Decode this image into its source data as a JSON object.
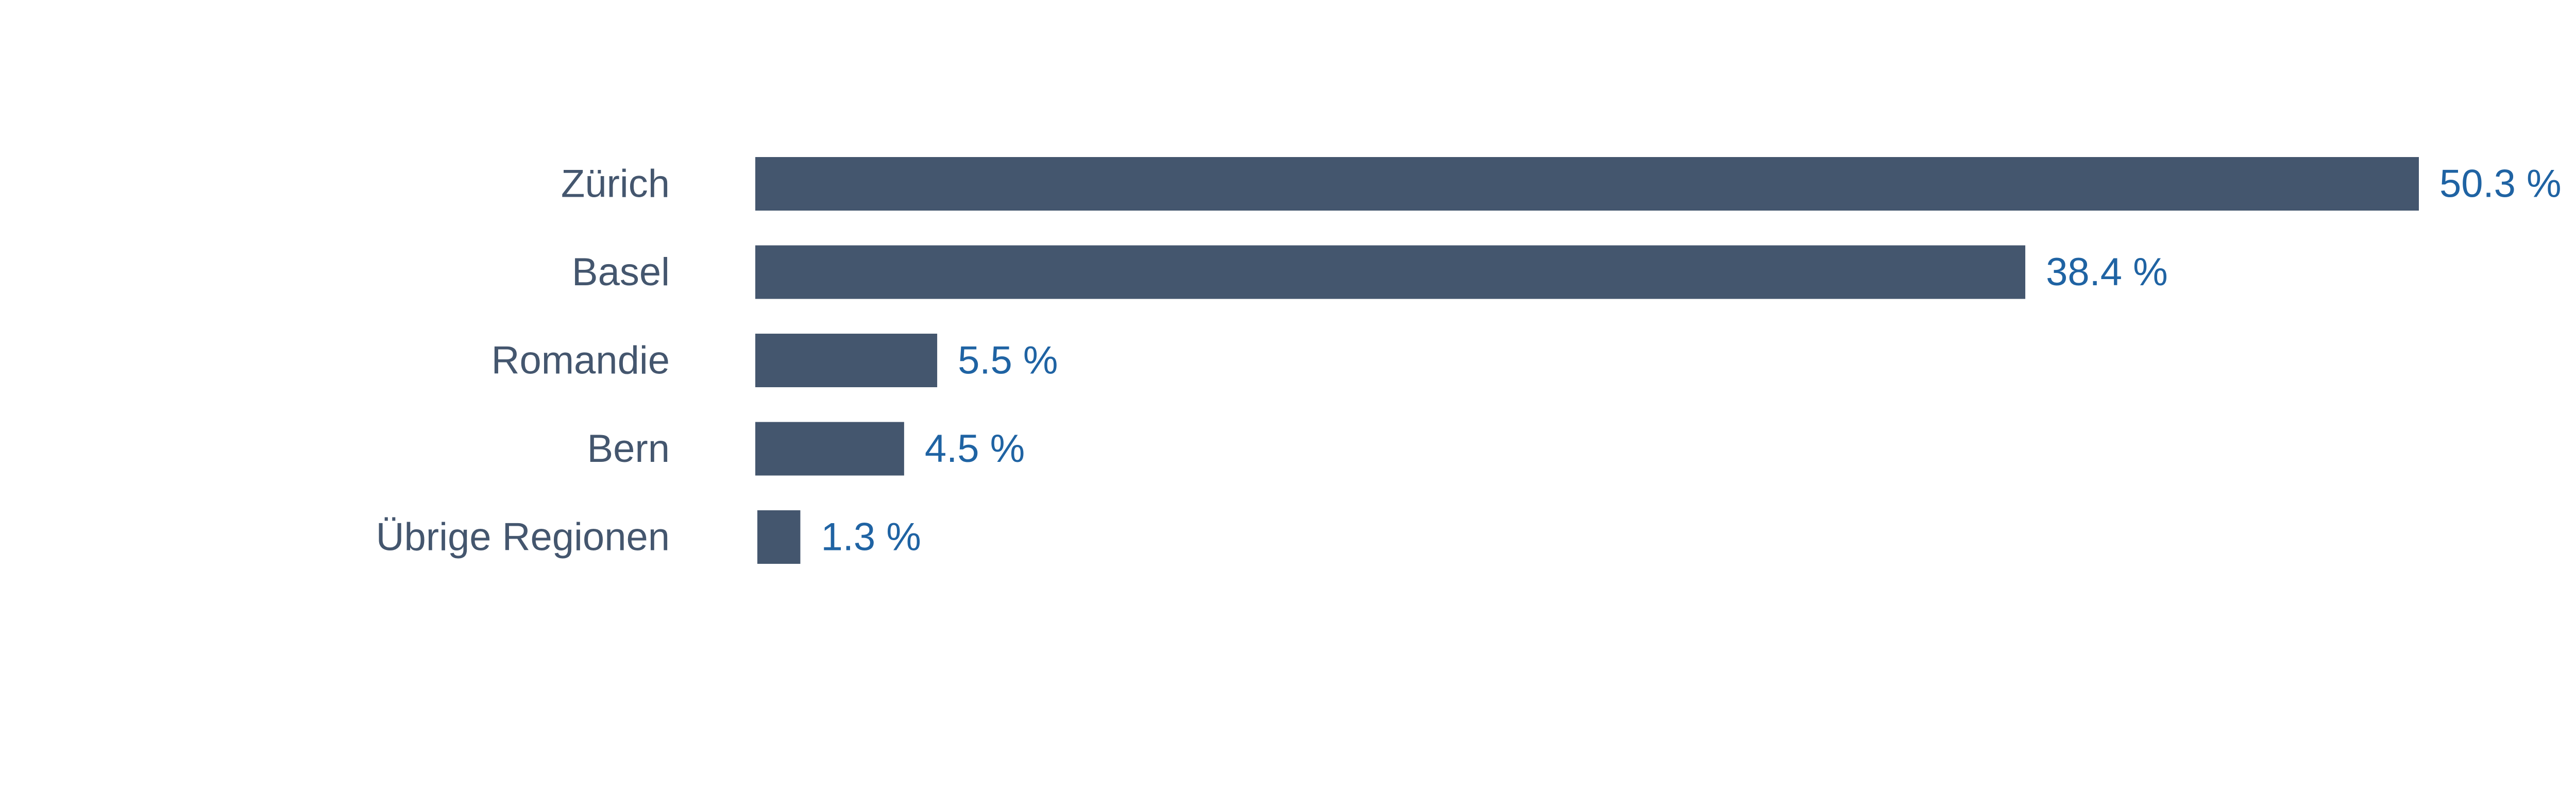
{
  "chart_data": {
    "type": "bar",
    "orientation": "horizontal",
    "categories": [
      "Zürich",
      "Basel",
      "Romandie",
      "Bern",
      "Übrige Regionen"
    ],
    "values": [
      50.3,
      38.4,
      5.5,
      4.5,
      1.3
    ],
    "value_labels": [
      "50.3 %",
      "38.4 %",
      "5.5 %",
      "4.5 %",
      "1.3 %"
    ],
    "xlim": [
      0,
      50.3
    ],
    "grid": false,
    "legend": "none",
    "colors": {
      "bar": "#44566e",
      "category_label": "#44566e",
      "value_label": "#1f63a3"
    }
  }
}
